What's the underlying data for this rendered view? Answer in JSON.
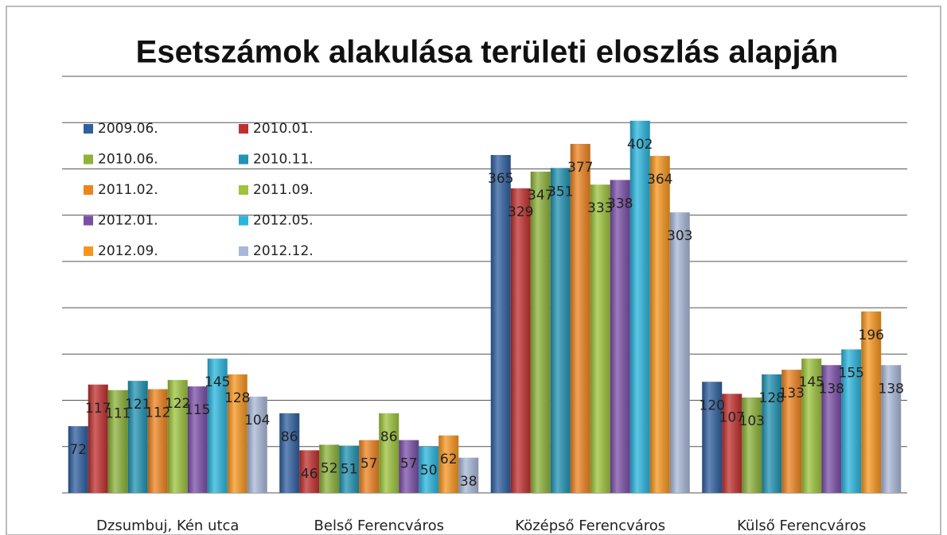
{
  "chart_data": {
    "type": "bar",
    "title": "Esetszámok alakulása területi eloszlás alapján",
    "categories": [
      "Dzsumbuj, Kén utca",
      "Belső Ferencváros",
      "Középső Ferencváros",
      "Külső Ferencváros"
    ],
    "series": [
      {
        "name": "2009.06.",
        "color": "#2f5fa0",
        "values": [
          72,
          86,
          365,
          120
        ]
      },
      {
        "name": "2010.01.",
        "color": "#c0302f",
        "values": [
          117,
          46,
          329,
          107
        ]
      },
      {
        "name": "2010.06.",
        "color": "#8db33a",
        "values": [
          111,
          52,
          347,
          103
        ]
      },
      {
        "name": "2010.11.",
        "color": "#2193b3",
        "values": [
          121,
          51,
          351,
          128
        ]
      },
      {
        "name": "2011.02.",
        "color": "#ee8420",
        "values": [
          112,
          57,
          377,
          133
        ]
      },
      {
        "name": "2011.09.",
        "color": "#9dc43c",
        "values": [
          122,
          86,
          333,
          145
        ]
      },
      {
        "name": "2012.01.",
        "color": "#7b4fa8",
        "values": [
          115,
          57,
          338,
          138
        ]
      },
      {
        "name": "2012.05.",
        "color": "#2ab5de",
        "values": [
          145,
          50,
          402,
          155
        ]
      },
      {
        "name": "2012.09.",
        "color": "#f7961e",
        "values": [
          128,
          62,
          364,
          196
        ]
      },
      {
        "name": "2012.12.",
        "color": "#a9b8d8",
        "values": [
          104,
          38,
          303,
          138
        ]
      }
    ],
    "ylim": [
      0,
      450
    ],
    "yticks": [
      0,
      50,
      100,
      150,
      200,
      250,
      300,
      350,
      400,
      450
    ],
    "grid": true
  }
}
